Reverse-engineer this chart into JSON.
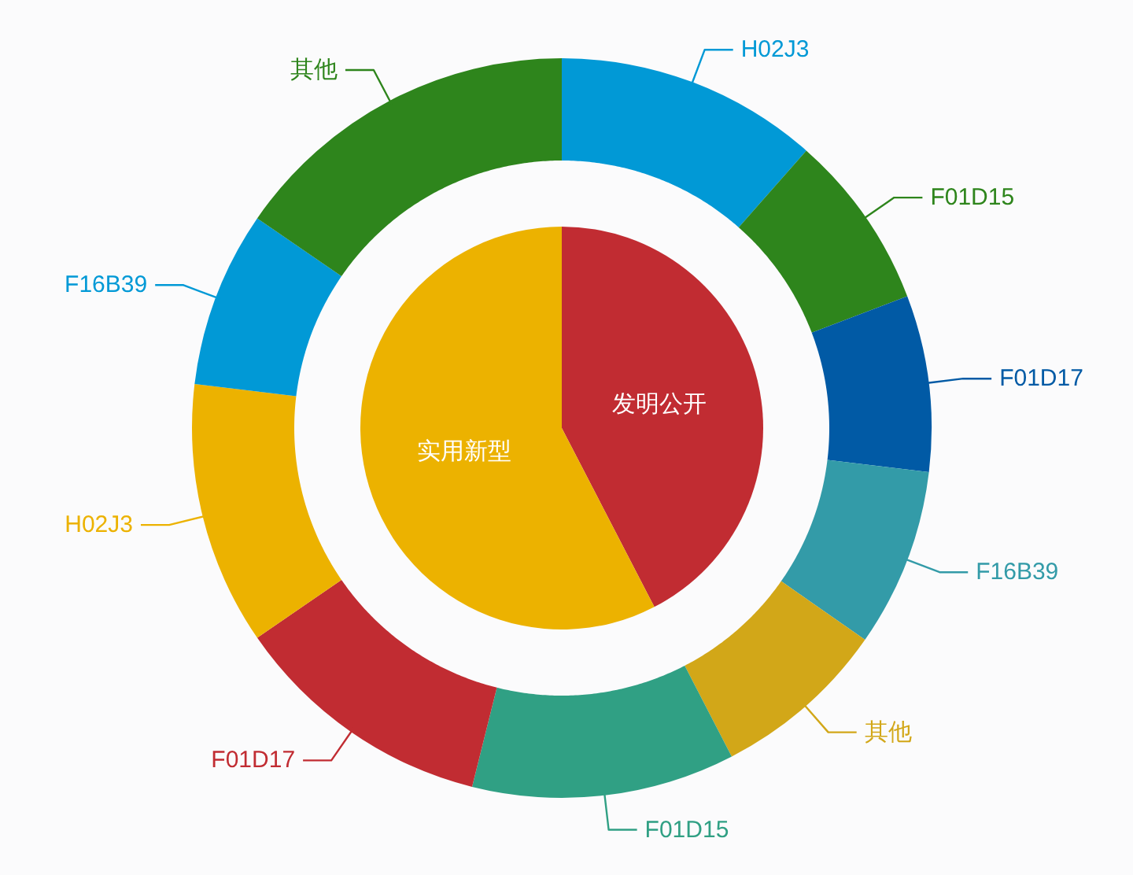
{
  "chart_data": [
    {
      "type": "donut",
      "categories": [
        "H02J3",
        "F01D15",
        "F01D17",
        "F16B39",
        "其他",
        "F01D15",
        "F01D17",
        "H02J3",
        "F16B39",
        "其他"
      ],
      "values": [
        11.5,
        7.7,
        7.7,
        7.8,
        7.7,
        11.5,
        11.5,
        11.5,
        7.7,
        15.4
      ],
      "colors": [
        "#0199d6",
        "#2e851c",
        "#015aa5",
        "#339ba8",
        "#d2a718",
        "#30a084",
        "#c12c32",
        "#ecb200",
        "#0199d6",
        "#2e851c"
      ]
    },
    {
      "type": "pie",
      "categories": [
        "发明公开",
        "实用新型"
      ],
      "values": [
        42.4,
        57.6
      ],
      "colors": [
        "#c12c32",
        "#ecb200"
      ]
    }
  ]
}
